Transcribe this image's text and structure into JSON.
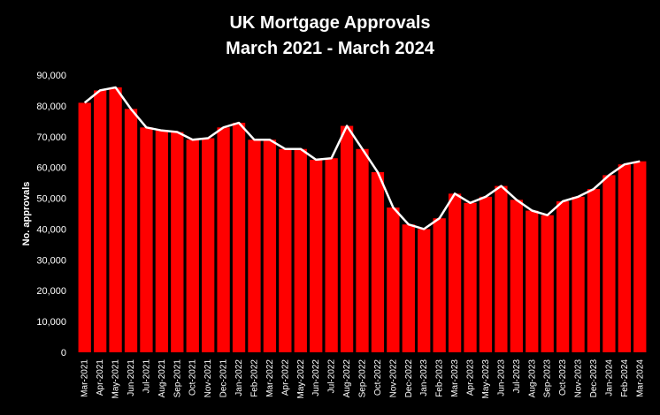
{
  "chart_data": {
    "type": "bar",
    "title": "UK Mortgage Approvals",
    "subtitle": "March 2021 - March 2024",
    "xlabel": "",
    "ylabel": "No. approvals",
    "ylim": [
      0,
      90000
    ],
    "yticks": [
      0,
      10000,
      20000,
      30000,
      40000,
      50000,
      60000,
      70000,
      80000,
      90000
    ],
    "ytick_labels": [
      "0",
      "10,000",
      "20,000",
      "30,000",
      "40,000",
      "50,000",
      "60,000",
      "70,000",
      "80,000",
      "90,000"
    ],
    "grid": false,
    "legend": "none",
    "bar_color": "#ff0000",
    "line_color": "#ffffff",
    "background_color": "#000000",
    "categories": [
      "Mar-2021",
      "Apr-2021",
      "May-2021",
      "Jun-2021",
      "Jul-2021",
      "Aug-2021",
      "Sep-2021",
      "Oct-2021",
      "Nov-2021",
      "Dec-2021",
      "Jan-2022",
      "Feb-2022",
      "Mar-2022",
      "Apr-2022",
      "May-2022",
      "Jun-2022",
      "Jul-2022",
      "Aug-2022",
      "Sep-2022",
      "Oct-2022",
      "Nov-2022",
      "Dec-2022",
      "Jan-2023",
      "Feb-2023",
      "Mar-2023",
      "Apr-2023",
      "May-2023",
      "Jun-2023",
      "Jul-2023",
      "Aug-2023",
      "Sep-2023",
      "Oct-2023",
      "Nov-2023",
      "Dec-2023",
      "Jan-2024",
      "Feb-2024",
      "Mar-2024"
    ],
    "values": [
      81000,
      85000,
      86000,
      79000,
      73000,
      72000,
      71500,
      69000,
      69500,
      73000,
      74500,
      69000,
      69000,
      66000,
      66000,
      62500,
      63000,
      73500,
      66000,
      58500,
      47000,
      41500,
      40000,
      43500,
      51500,
      48500,
      50500,
      54000,
      49500,
      46000,
      44500,
      49000,
      50500,
      53000,
      57500,
      61000,
      62000
    ]
  }
}
